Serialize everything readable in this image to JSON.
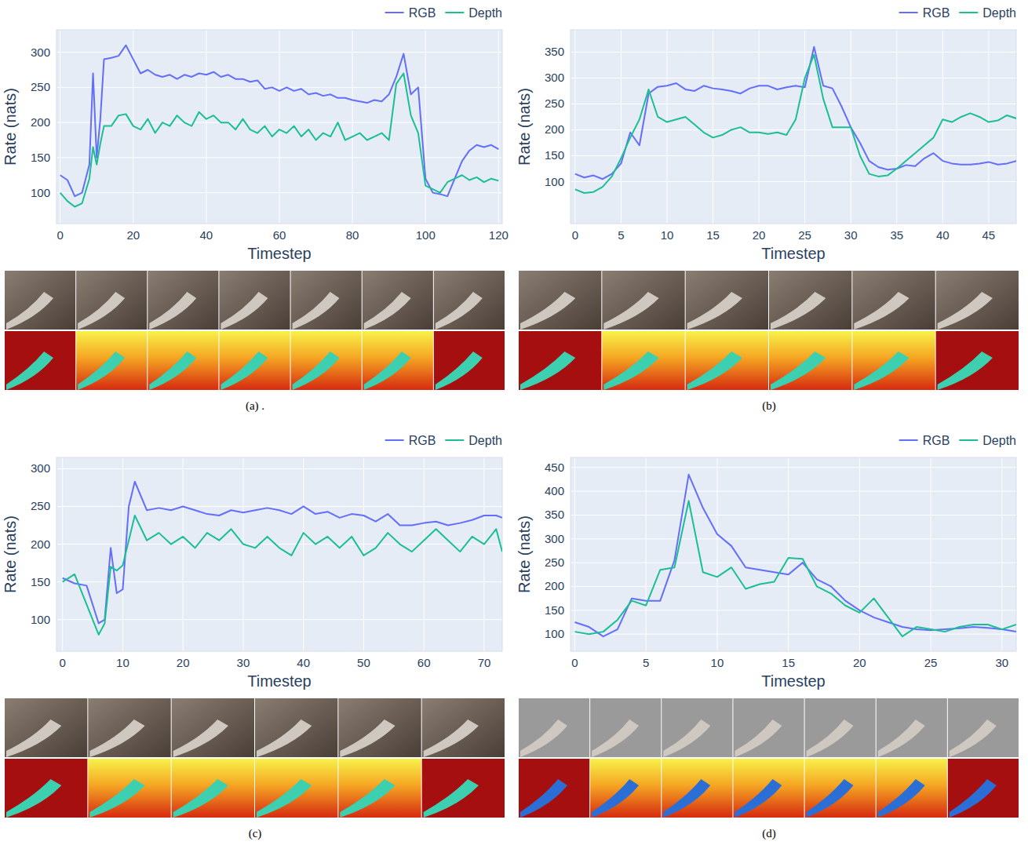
{
  "chart_data": [
    {
      "type": "line",
      "title": "(a) .",
      "x_label": "Timestep",
      "y_label": "Rate (nats)",
      "x": [
        0,
        2,
        4,
        6,
        8,
        9,
        10,
        11,
        12,
        14,
        16,
        18,
        20,
        22,
        24,
        26,
        28,
        30,
        32,
        34,
        36,
        38,
        40,
        42,
        44,
        46,
        48,
        50,
        52,
        54,
        56,
        58,
        60,
        62,
        64,
        66,
        68,
        70,
        72,
        74,
        76,
        78,
        80,
        82,
        84,
        86,
        88,
        90,
        92,
        94,
        96,
        98,
        100,
        102,
        104,
        106,
        108,
        110,
        112,
        114,
        116,
        118,
        120
      ],
      "series": [
        {
          "name": "RGB",
          "color": "#636efa",
          "values": [
            125,
            118,
            95,
            100,
            140,
            270,
            150,
            205,
            290,
            292,
            295,
            310,
            290,
            270,
            275,
            268,
            265,
            268,
            262,
            268,
            265,
            270,
            268,
            272,
            265,
            268,
            262,
            262,
            258,
            260,
            248,
            250,
            245,
            250,
            245,
            248,
            240,
            242,
            238,
            240,
            235,
            235,
            232,
            230,
            228,
            232,
            230,
            240,
            265,
            298,
            240,
            250,
            120,
            100,
            98,
            95,
            120,
            145,
            160,
            168,
            165,
            168,
            162
          ]
        },
        {
          "name": "Depth",
          "color": "#1cbe93",
          "values": [
            100,
            88,
            80,
            85,
            120,
            165,
            140,
            170,
            195,
            195,
            210,
            212,
            195,
            190,
            205,
            185,
            200,
            195,
            210,
            200,
            195,
            215,
            205,
            210,
            200,
            200,
            190,
            205,
            190,
            185,
            195,
            180,
            190,
            185,
            195,
            180,
            190,
            175,
            185,
            180,
            200,
            175,
            180,
            185,
            175,
            180,
            185,
            175,
            255,
            270,
            210,
            185,
            110,
            105,
            100,
            115,
            120,
            125,
            118,
            122,
            115,
            120,
            117
          ]
        }
      ],
      "xlim": [
        -1,
        121
      ],
      "ylim": [
        56,
        332
      ],
      "xticks": [
        0,
        20,
        40,
        60,
        80,
        100,
        120
      ],
      "yticks": [
        100,
        150,
        200,
        250,
        300
      ],
      "grid": true,
      "legend": "top-right"
    },
    {
      "type": "line",
      "title": "(b)",
      "x_label": "Timestep",
      "y_label": "Rate (nats)",
      "x": [
        0,
        1,
        2,
        3,
        4,
        5,
        6,
        7,
        8,
        9,
        10,
        11,
        12,
        13,
        14,
        15,
        16,
        17,
        18,
        19,
        20,
        21,
        22,
        23,
        24,
        25,
        26,
        27,
        28,
        29,
        30,
        31,
        32,
        33,
        34,
        35,
        36,
        37,
        38,
        39,
        40,
        41,
        42,
        43,
        44,
        45,
        46,
        47,
        48
      ],
      "series": [
        {
          "name": "RGB",
          "color": "#636efa",
          "values": [
            115,
            108,
            112,
            105,
            115,
            135,
            195,
            170,
            270,
            283,
            285,
            290,
            278,
            275,
            285,
            280,
            278,
            275,
            270,
            280,
            285,
            285,
            278,
            282,
            285,
            282,
            360,
            285,
            280,
            245,
            205,
            175,
            140,
            128,
            123,
            125,
            132,
            130,
            145,
            155,
            140,
            135,
            133,
            133,
            135,
            138,
            133,
            135,
            140
          ]
        },
        {
          "name": "Depth",
          "color": "#1cbe93",
          "values": [
            85,
            78,
            80,
            90,
            110,
            145,
            185,
            220,
            278,
            225,
            215,
            220,
            225,
            210,
            195,
            185,
            190,
            200,
            205,
            195,
            195,
            192,
            195,
            190,
            220,
            300,
            345,
            260,
            205,
            205,
            205,
            150,
            115,
            110,
            112,
            125,
            140,
            155,
            170,
            185,
            220,
            215,
            225,
            232,
            225,
            215,
            218,
            228,
            222
          ]
        }
      ],
      "xlim": [
        -0.5,
        48
      ],
      "ylim": [
        19,
        393
      ],
      "xticks": [
        0,
        5,
        10,
        15,
        20,
        25,
        30,
        35,
        40,
        45
      ],
      "yticks": [
        100,
        150,
        200,
        250,
        300,
        350
      ],
      "grid": true,
      "legend": "top-right"
    },
    {
      "type": "line",
      "title": "(c)",
      "x_label": "Timestep",
      "y_label": "Rate (nats)",
      "x": [
        0,
        2,
        4,
        6,
        7,
        8,
        9,
        10,
        11,
        12,
        14,
        16,
        18,
        20,
        22,
        24,
        26,
        28,
        30,
        32,
        34,
        36,
        38,
        40,
        42,
        44,
        46,
        48,
        50,
        52,
        54,
        56,
        58,
        60,
        62,
        64,
        66,
        68,
        70,
        72,
        73
      ],
      "series": [
        {
          "name": "RGB",
          "color": "#636efa",
          "values": [
            155,
            148,
            145,
            95,
            100,
            195,
            135,
            140,
            250,
            283,
            245,
            248,
            245,
            250,
            245,
            240,
            238,
            245,
            242,
            245,
            248,
            245,
            240,
            250,
            240,
            243,
            235,
            240,
            238,
            230,
            240,
            225,
            225,
            228,
            230,
            225,
            228,
            232,
            238,
            238,
            235
          ]
        },
        {
          "name": "Depth",
          "color": "#1cbe93",
          "values": [
            150,
            160,
            120,
            80,
            95,
            170,
            165,
            172,
            205,
            238,
            205,
            215,
            200,
            210,
            195,
            215,
            205,
            220,
            200,
            195,
            210,
            195,
            185,
            215,
            200,
            210,
            195,
            210,
            185,
            195,
            215,
            200,
            190,
            205,
            220,
            205,
            190,
            210,
            200,
            220,
            190
          ]
        }
      ],
      "xlim": [
        -1,
        73
      ],
      "ylim": [
        58,
        315
      ],
      "xticks": [
        0,
        10,
        20,
        30,
        40,
        50,
        60,
        70
      ],
      "yticks": [
        100,
        150,
        200,
        250,
        300
      ],
      "grid": true,
      "legend": "top-right"
    },
    {
      "type": "line",
      "title": "(d)",
      "x_label": "Timestep",
      "y_label": "Rate (nats)",
      "x": [
        0,
        1,
        2,
        3,
        4,
        5,
        6,
        7,
        8,
        9,
        10,
        11,
        12,
        13,
        14,
        15,
        16,
        17,
        18,
        19,
        20,
        21,
        22,
        23,
        24,
        25,
        26,
        27,
        28,
        29,
        30,
        31
      ],
      "series": [
        {
          "name": "RGB",
          "color": "#636efa",
          "values": [
            125,
            115,
            95,
            110,
            175,
            170,
            170,
            255,
            435,
            365,
            310,
            285,
            240,
            235,
            230,
            225,
            250,
            215,
            200,
            170,
            150,
            135,
            125,
            115,
            110,
            108,
            110,
            112,
            115,
            113,
            110,
            105
          ]
        },
        {
          "name": "Depth",
          "color": "#1cbe93",
          "values": [
            105,
            100,
            105,
            130,
            170,
            160,
            235,
            240,
            380,
            230,
            220,
            240,
            195,
            205,
            210,
            260,
            258,
            200,
            185,
            160,
            145,
            175,
            135,
            95,
            115,
            110,
            105,
            115,
            120,
            120,
            110,
            120
          ]
        }
      ],
      "xlim": [
        -0.3,
        31
      ],
      "ylim": [
        64,
        471
      ],
      "xticks": [
        0,
        5,
        10,
        15,
        20,
        25,
        30
      ],
      "yticks": [
        100,
        150,
        200,
        250,
        300,
        350,
        400,
        450
      ],
      "grid": true,
      "legend": "top-right"
    }
  ]
}
